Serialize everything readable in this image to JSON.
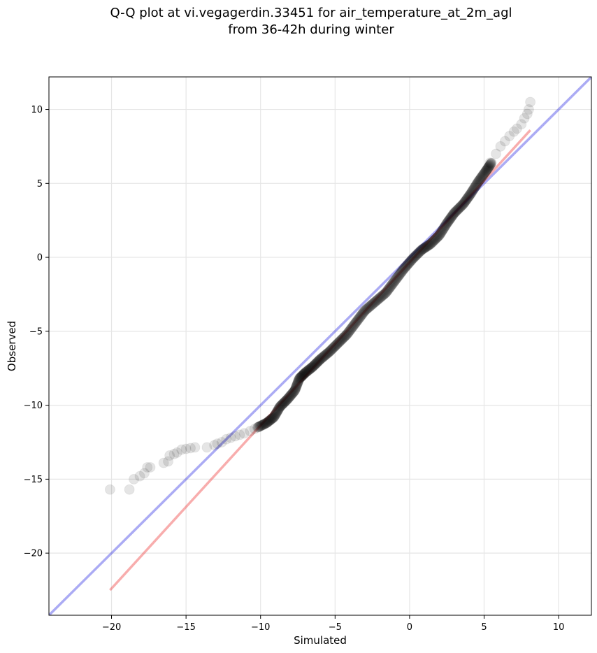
{
  "chart_data": {
    "type": "scatter",
    "title_lines": [
      "Q-Q plot at vi.vegagerdin.33451 for air_temperature_at_2m_agl",
      "from 36-42h during winter"
    ],
    "xlabel": "Simulated",
    "ylabel": "Observed",
    "xlim": [
      -24.2,
      12.2
    ],
    "ylim": [
      -24.2,
      12.2
    ],
    "xticks": [
      -20,
      -15,
      -10,
      -5,
      0,
      5,
      10
    ],
    "yticks": [
      -20,
      -15,
      -10,
      -5,
      0,
      5,
      10
    ],
    "xtick_labels": [
      "−20",
      "−15",
      "−10",
      "−5",
      "0",
      "5",
      "10"
    ],
    "ytick_labels": [
      "−20",
      "−15",
      "−10",
      "−5",
      "0",
      "5",
      "10"
    ],
    "grid": true,
    "reference_line": {
      "color": "#0000dd",
      "slope": 1,
      "intercept": 0
    },
    "fit_line": {
      "color": "#ee3333",
      "x": [
        -20.1,
        8.1
      ],
      "y": [
        -22.5,
        8.6
      ]
    },
    "marker_color": "#000000",
    "tail_points": [
      {
        "x": -20.1,
        "y": -15.7
      },
      {
        "x": -18.8,
        "y": -15.7
      },
      {
        "x": -18.5,
        "y": -15.0
      },
      {
        "x": -18.1,
        "y": -14.8
      },
      {
        "x": -17.8,
        "y": -14.6
      },
      {
        "x": -17.6,
        "y": -14.2
      },
      {
        "x": -17.4,
        "y": -14.2
      },
      {
        "x": -16.5,
        "y": -13.9
      },
      {
        "x": -16.2,
        "y": -13.8
      },
      {
        "x": -16.1,
        "y": -13.4
      },
      {
        "x": -15.8,
        "y": -13.3
      },
      {
        "x": -15.6,
        "y": -13.2
      },
      {
        "x": -15.3,
        "y": -13.0
      },
      {
        "x": -15.0,
        "y": -12.95
      },
      {
        "x": -14.7,
        "y": -12.9
      },
      {
        "x": -14.4,
        "y": -12.85
      },
      {
        "x": -13.6,
        "y": -12.85
      },
      {
        "x": -13.1,
        "y": -12.7
      },
      {
        "x": -12.9,
        "y": -12.6
      },
      {
        "x": -12.6,
        "y": -12.5
      },
      {
        "x": -12.3,
        "y": -12.3
      },
      {
        "x": -12.0,
        "y": -12.2
      },
      {
        "x": -11.7,
        "y": -12.1
      },
      {
        "x": -11.4,
        "y": -12.0
      },
      {
        "x": -11.1,
        "y": -11.9
      },
      {
        "x": -10.7,
        "y": -11.75
      },
      {
        "x": -10.4,
        "y": -11.6
      },
      {
        "x": 5.4,
        "y": 6.4
      },
      {
        "x": 5.8,
        "y": 7.0
      },
      {
        "x": 6.1,
        "y": 7.5
      },
      {
        "x": 6.4,
        "y": 7.85
      },
      {
        "x": 6.7,
        "y": 8.2
      },
      {
        "x": 7.0,
        "y": 8.5
      },
      {
        "x": 7.2,
        "y": 8.7
      },
      {
        "x": 7.5,
        "y": 9.0
      },
      {
        "x": 7.7,
        "y": 9.4
      },
      {
        "x": 7.9,
        "y": 9.7
      },
      {
        "x": 8.0,
        "y": 10.0
      },
      {
        "x": 8.1,
        "y": 10.5
      }
    ],
    "dense_curve": [
      {
        "x": -10.2,
        "y": -11.5
      },
      {
        "x": -9.6,
        "y": -11.2
      },
      {
        "x": -9.1,
        "y": -10.8
      },
      {
        "x": -8.7,
        "y": -10.1
      },
      {
        "x": -8.2,
        "y": -9.6
      },
      {
        "x": -7.7,
        "y": -9.0
      },
      {
        "x": -7.4,
        "y": -8.2
      },
      {
        "x": -7.0,
        "y": -7.8
      },
      {
        "x": -6.5,
        "y": -7.4
      },
      {
        "x": -6.0,
        "y": -6.9
      },
      {
        "x": -5.4,
        "y": -6.4
      },
      {
        "x": -4.8,
        "y": -5.8
      },
      {
        "x": -4.2,
        "y": -5.2
      },
      {
        "x": -3.6,
        "y": -4.4
      },
      {
        "x": -3.0,
        "y": -3.6
      },
      {
        "x": -2.3,
        "y": -3.0
      },
      {
        "x": -1.6,
        "y": -2.4
      },
      {
        "x": -1.0,
        "y": -1.6
      },
      {
        "x": -0.4,
        "y": -0.8
      },
      {
        "x": 0.2,
        "y": -0.1
      },
      {
        "x": 0.8,
        "y": 0.5
      },
      {
        "x": 1.4,
        "y": 0.9
      },
      {
        "x": 2.0,
        "y": 1.5
      },
      {
        "x": 2.5,
        "y": 2.3
      },
      {
        "x": 3.0,
        "y": 3.0
      },
      {
        "x": 3.6,
        "y": 3.6
      },
      {
        "x": 4.1,
        "y": 4.3
      },
      {
        "x": 4.6,
        "y": 5.1
      },
      {
        "x": 5.1,
        "y": 5.8
      },
      {
        "x": 5.5,
        "y": 6.4
      }
    ]
  }
}
